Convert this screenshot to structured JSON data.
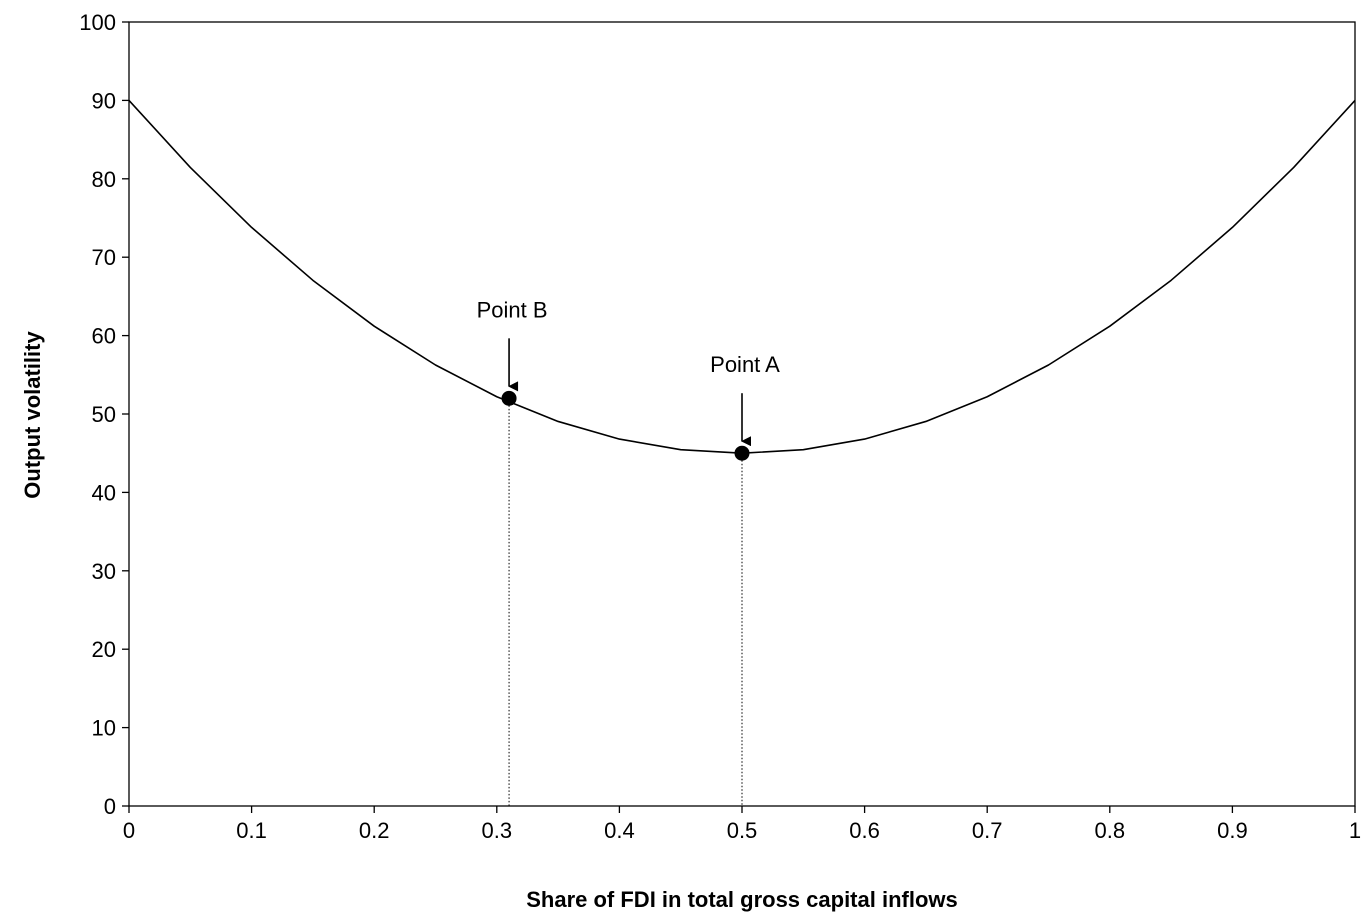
{
  "chart_data": {
    "type": "line",
    "title": "",
    "xlabel": "Share of FDI in total gross capital inflows",
    "ylabel": "Output volatility",
    "xlim": [
      0,
      1
    ],
    "ylim": [
      0,
      100
    ],
    "grid": false,
    "x_ticks": [
      "0",
      "0.1",
      "0.2",
      "0.3",
      "0.4",
      "0.5",
      "0.6",
      "0.7",
      "0.8",
      "0.9",
      "1"
    ],
    "y_ticks": [
      "0",
      "10",
      "20",
      "30",
      "40",
      "50",
      "60",
      "70",
      "80",
      "90",
      "100"
    ],
    "series": [
      {
        "x": [
          0,
          0.05,
          0.1,
          0.15,
          0.2,
          0.25,
          0.3,
          0.35,
          0.4,
          0.45,
          0.5,
          0.55,
          0.6,
          0.65,
          0.7,
          0.75,
          0.8,
          0.85,
          0.9,
          0.95,
          1
        ],
        "values": [
          90,
          81.45,
          73.8,
          67.05,
          61.2,
          56.25,
          52.2,
          49.05,
          46.8,
          45.45,
          45,
          45.45,
          46.8,
          49.05,
          52.2,
          56.25,
          61.2,
          67.05,
          73.8,
          81.45,
          90
        ]
      }
    ],
    "annotations": [
      {
        "label": "Point A",
        "x": 0.5,
        "y": 45
      },
      {
        "label": "Point B",
        "x": 0.31,
        "y": 52
      }
    ]
  }
}
